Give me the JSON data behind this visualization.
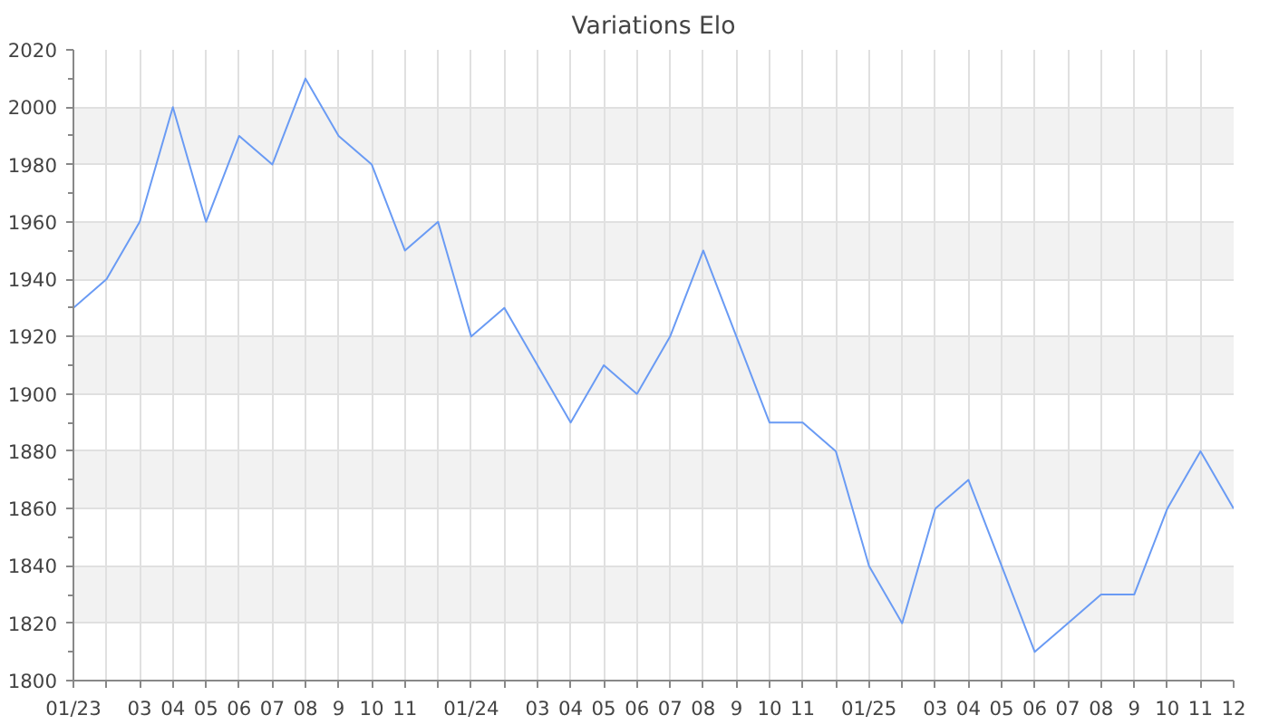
{
  "chart_data": {
    "type": "line",
    "title": "Variations Elo",
    "categories": [
      "01/23",
      null,
      "03",
      "04",
      "05",
      "06",
      "07",
      "08",
      "9",
      "10",
      "11",
      null,
      "01/24",
      null,
      "03",
      "04",
      "05",
      "06",
      "07",
      "08",
      "9",
      "10",
      "11",
      null,
      "01/25",
      null,
      "03",
      "04",
      "05",
      "06",
      "07",
      "08",
      "9",
      "10",
      "11",
      "12"
    ],
    "series": [
      {
        "color": "#6a9bf4",
        "values": [
          1930,
          1940,
          1960,
          2000,
          1960,
          1990,
          1980,
          2010,
          1990,
          1980,
          1950,
          1960,
          1920,
          1930,
          1910,
          1890,
          1910,
          1900,
          1920,
          1950,
          1920,
          1890,
          1890,
          1880,
          1840,
          1820,
          1860,
          1870,
          1840,
          1810,
          1820,
          1830,
          1830,
          1860,
          1880,
          1860
        ]
      }
    ],
    "ylim": [
      1800,
      2020
    ],
    "yticks": [
      1800,
      1820,
      1840,
      1860,
      1880,
      1900,
      1920,
      1940,
      1960,
      1980,
      2000,
      2020
    ],
    "grid": true,
    "marker": "none",
    "line_style": "solid"
  }
}
